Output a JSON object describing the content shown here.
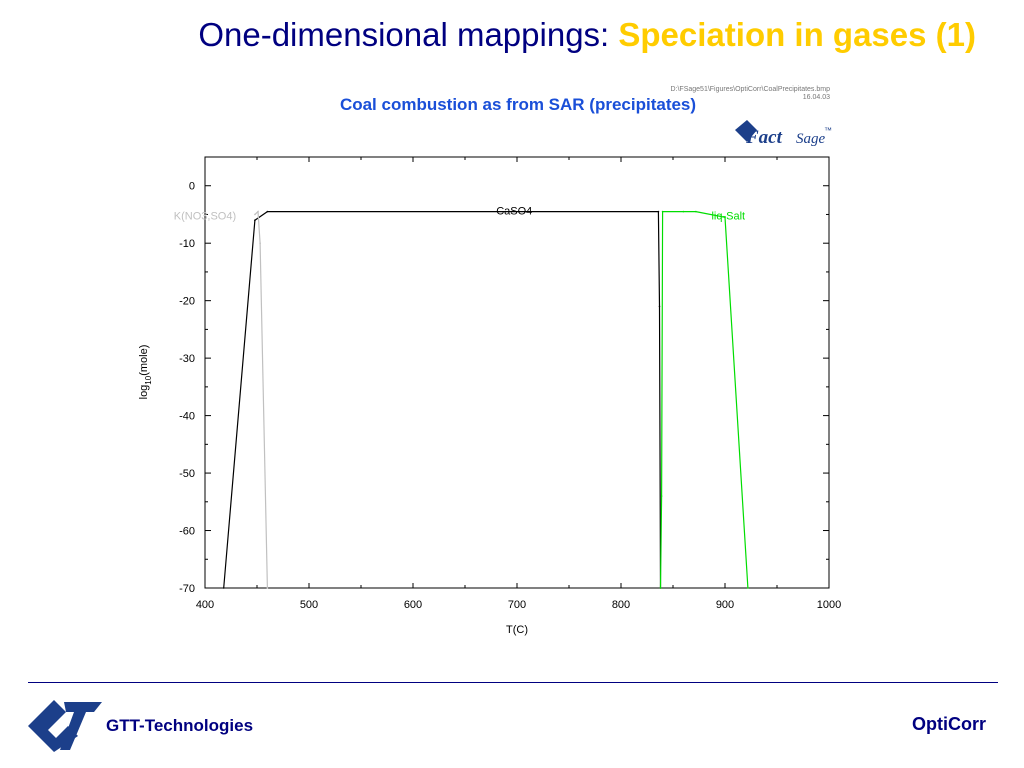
{
  "slide": {
    "title_main": "One-dimensional mappings: ",
    "title_highlight": "Speciation in gases (1)",
    "footer_left": "GTT-Technologies",
    "footer_right": "OptiCorr"
  },
  "icons": {
    "footer_logo": "gtt-logo-icon",
    "factsage_logo": "factsage-logo-icon"
  },
  "chart_data": {
    "type": "line",
    "title": "Coal combustion as from SAR (precipitates)",
    "file_path": "D:\\FSage51\\Figures\\OptiCorr\\CoalPrecipitates.bmp",
    "file_date": "16.04.03",
    "logo": {
      "main": "Fact",
      "sub": "Sage",
      "mark": "™"
    },
    "xlabel": "T(C)",
    "ylabel": {
      "pre": "log",
      "sub": "10",
      "post": "(mole)"
    },
    "xlim": [
      400,
      1000
    ],
    "ylim": [
      -70,
      5
    ],
    "xticks": [
      400,
      500,
      600,
      700,
      800,
      900,
      1000
    ],
    "yticks": [
      0,
      -10,
      -20,
      -30,
      -40,
      -50,
      -60,
      -70
    ],
    "grid": false,
    "series": [
      {
        "name": "CaSO4",
        "color": "#000000",
        "label_at": [
          680,
          -4.3
        ],
        "points": [
          [
            418,
            -72
          ],
          [
            448,
            -6
          ],
          [
            460,
            -4.5
          ],
          [
            836,
            -4.5
          ],
          [
            837,
            -21
          ],
          [
            838,
            -72
          ]
        ]
      },
      {
        "name": "K(NO3,SO4)",
        "color": "#c0c0c0",
        "label_at": [
          370,
          -5.2
        ],
        "points": [
          [
            448,
            -5
          ],
          [
            451,
            -4.5
          ],
          [
            453,
            -10
          ],
          [
            460,
            -72
          ]
        ]
      },
      {
        "name": "liq-Salt",
        "color": "#00dd00",
        "label_at": [
          887,
          -5.2
        ],
        "points": [
          [
            838,
            -72
          ],
          [
            839,
            -54
          ],
          [
            840,
            -4.5
          ],
          [
            860,
            -4.5
          ],
          [
            872,
            -4.5
          ],
          [
            900,
            -5.5
          ],
          [
            922,
            -72
          ]
        ]
      }
    ]
  }
}
